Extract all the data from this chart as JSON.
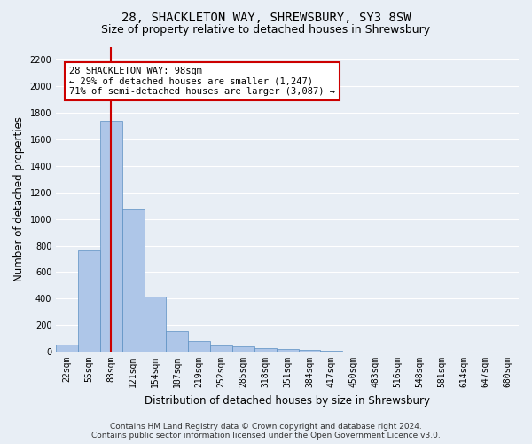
{
  "title_line1": "28, SHACKLETON WAY, SHREWSBURY, SY3 8SW",
  "title_line2": "Size of property relative to detached houses in Shrewsbury",
  "xlabel": "Distribution of detached houses by size in Shrewsbury",
  "ylabel": "Number of detached properties",
  "footer_line1": "Contains HM Land Registry data © Crown copyright and database right 2024.",
  "footer_line2": "Contains public sector information licensed under the Open Government Licence v3.0.",
  "bin_labels": [
    "22sqm",
    "55sqm",
    "88sqm",
    "121sqm",
    "154sqm",
    "187sqm",
    "219sqm",
    "252sqm",
    "285sqm",
    "318sqm",
    "351sqm",
    "384sqm",
    "417sqm",
    "450sqm",
    "483sqm",
    "516sqm",
    "548sqm",
    "581sqm",
    "614sqm",
    "647sqm",
    "680sqm"
  ],
  "bar_values": [
    55,
    765,
    1740,
    1075,
    415,
    155,
    80,
    45,
    40,
    28,
    20,
    15,
    10,
    0,
    0,
    0,
    0,
    0,
    0,
    0,
    0
  ],
  "bar_color": "#aec6e8",
  "bar_edgecolor": "#5a8fc2",
  "vline_color": "#cc0000",
  "vline_x_index": 2,
  "annotation_text": "28 SHACKLETON WAY: 98sqm\n← 29% of detached houses are smaller (1,247)\n71% of semi-detached houses are larger (3,087) →",
  "annotation_box_color": "#ffffff",
  "annotation_box_edgecolor": "#cc0000",
  "ylim": [
    0,
    2300
  ],
  "yticks": [
    0,
    200,
    400,
    600,
    800,
    1000,
    1200,
    1400,
    1600,
    1800,
    2000,
    2200
  ],
  "background_color": "#e8eef5",
  "plot_bg_color": "#e8eef5",
  "grid_color": "#ffffff",
  "title_fontsize": 10,
  "subtitle_fontsize": 9,
  "axis_label_fontsize": 8.5,
  "tick_fontsize": 7,
  "footer_fontsize": 6.5,
  "annotation_fontsize": 7.5
}
